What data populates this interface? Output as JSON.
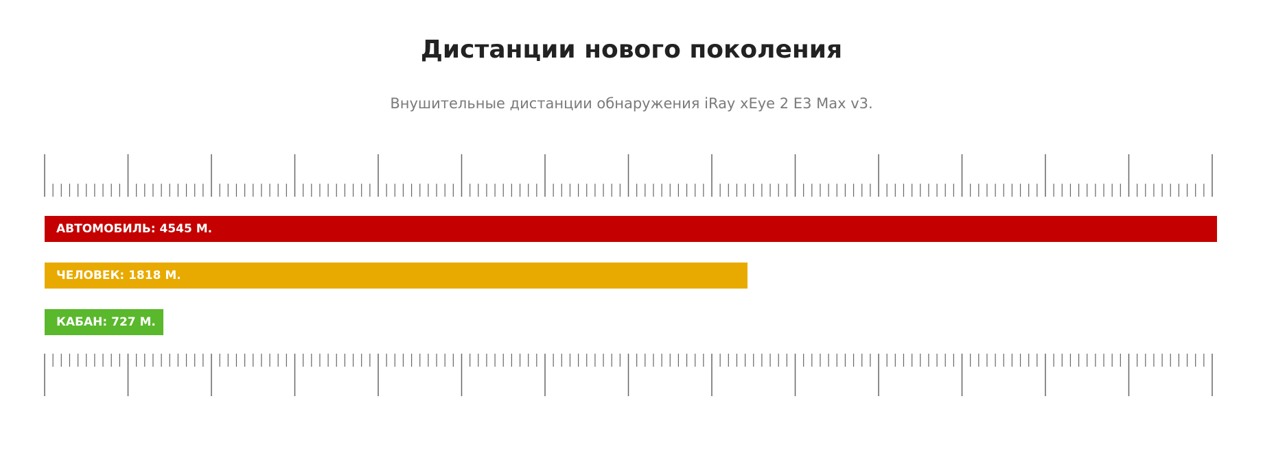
{
  "header": {
    "title": "Дистанции нового поколения",
    "subtitle": "Внушительные дистанции обнаружения iRay xEye 2 E3 Max v3."
  },
  "bars": [
    {
      "label": "АВТОМОБИЛЬ: 4545 М."
    },
    {
      "label": "ЧЕЛОВЕК: 1818 М."
    },
    {
      "label": "КАБАН: 727 М."
    }
  ]
}
